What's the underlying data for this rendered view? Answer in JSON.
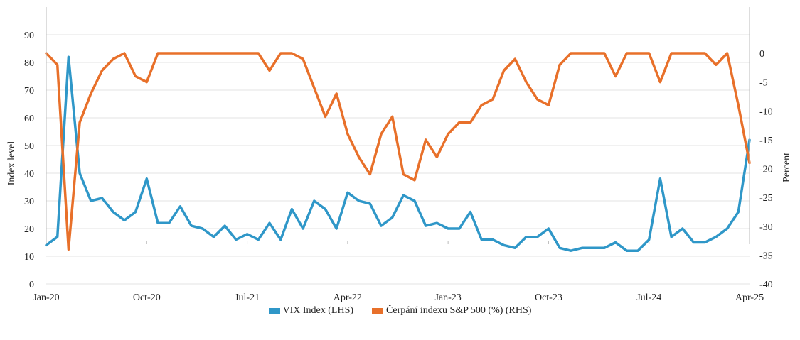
{
  "chart_data": {
    "type": "line",
    "x_ticks": [
      "Jan-20",
      "Oct-20",
      "Jul-21",
      "Apr-22",
      "Jan-23",
      "Oct-23",
      "Jul-24",
      "Apr-25"
    ],
    "y_left": {
      "label": "Index level",
      "ticks": [
        0,
        10,
        20,
        30,
        40,
        50,
        60,
        70,
        80,
        90
      ],
      "range": [
        0,
        100
      ]
    },
    "y_right": {
      "label": "Percent",
      "ticks": [
        0,
        -5,
        -10,
        -15,
        -20,
        -25,
        -30,
        -35,
        -40
      ],
      "range": [
        -40,
        8
      ]
    },
    "series": [
      {
        "name": "VIX Index (LHS)",
        "axis": "left",
        "color": "#2f97c8",
        "x": [
          "2020-01",
          "2020-02",
          "2020-03",
          "2020-04",
          "2020-05",
          "2020-06",
          "2020-07",
          "2020-08",
          "2020-09",
          "2020-10",
          "2020-11",
          "2020-12",
          "2021-01",
          "2021-02",
          "2021-03",
          "2021-04",
          "2021-05",
          "2021-06",
          "2021-07",
          "2021-08",
          "2021-09",
          "2021-10",
          "2021-11",
          "2021-12",
          "2022-01",
          "2022-02",
          "2022-03",
          "2022-04",
          "2022-05",
          "2022-06",
          "2022-07",
          "2022-08",
          "2022-09",
          "2022-10",
          "2022-11",
          "2022-12",
          "2023-01",
          "2023-02",
          "2023-03",
          "2023-04",
          "2023-05",
          "2023-06",
          "2023-07",
          "2023-08",
          "2023-09",
          "2023-10",
          "2023-11",
          "2023-12",
          "2024-01",
          "2024-02",
          "2024-03",
          "2024-04",
          "2024-05",
          "2024-06",
          "2024-07",
          "2024-08",
          "2024-09",
          "2024-10",
          "2024-11",
          "2024-12",
          "2025-01",
          "2025-02",
          "2025-03",
          "2025-04"
        ],
        "values": [
          14,
          17,
          82,
          40,
          30,
          31,
          26,
          23,
          26,
          38,
          22,
          22,
          28,
          21,
          20,
          17,
          21,
          16,
          18,
          16,
          22,
          16,
          27,
          20,
          30,
          27,
          20,
          33,
          30,
          29,
          21,
          24,
          32,
          30,
          21,
          22,
          20,
          20,
          26,
          16,
          16,
          14,
          13,
          17,
          17,
          20,
          13,
          12,
          13,
          13,
          13,
          15,
          12,
          12,
          16,
          38,
          17,
          20,
          15,
          15,
          17,
          20,
          26,
          52
        ]
      },
      {
        "name": "Čerpání indexu S&P 500 (%) (RHS)",
        "axis": "right",
        "color": "#e8702a",
        "x": [
          "2020-01",
          "2020-02",
          "2020-03",
          "2020-04",
          "2020-05",
          "2020-06",
          "2020-07",
          "2020-08",
          "2020-09",
          "2020-10",
          "2020-11",
          "2020-12",
          "2021-01",
          "2021-02",
          "2021-03",
          "2021-04",
          "2021-05",
          "2021-06",
          "2021-07",
          "2021-08",
          "2021-09",
          "2021-10",
          "2021-11",
          "2021-12",
          "2022-01",
          "2022-02",
          "2022-03",
          "2022-04",
          "2022-05",
          "2022-06",
          "2022-07",
          "2022-08",
          "2022-09",
          "2022-10",
          "2022-11",
          "2022-12",
          "2023-01",
          "2023-02",
          "2023-03",
          "2023-04",
          "2023-05",
          "2023-06",
          "2023-07",
          "2023-08",
          "2023-09",
          "2023-10",
          "2023-11",
          "2023-12",
          "2024-01",
          "2024-02",
          "2024-03",
          "2024-04",
          "2024-05",
          "2024-06",
          "2024-07",
          "2024-08",
          "2024-09",
          "2024-10",
          "2024-11",
          "2024-12",
          "2025-01",
          "2025-02",
          "2025-03",
          "2025-04"
        ],
        "values": [
          0,
          -2,
          -34,
          -12,
          -7,
          -3,
          -1,
          0,
          -4,
          -5,
          0,
          0,
          0,
          0,
          0,
          0,
          0,
          0,
          0,
          0,
          -3,
          0,
          0,
          -1,
          -6,
          -11,
          -7,
          -14,
          -18,
          -21,
          -14,
          -11,
          -21,
          -22,
          -15,
          -18,
          -14,
          -12,
          -12,
          -9,
          -8,
          -3,
          -1,
          -5,
          -8,
          -9,
          -2,
          0,
          0,
          0,
          0,
          -4,
          0,
          0,
          0,
          -5,
          0,
          0,
          0,
          0,
          -2,
          0,
          -9,
          -19
        ]
      }
    ],
    "legend_position": "bottom"
  }
}
